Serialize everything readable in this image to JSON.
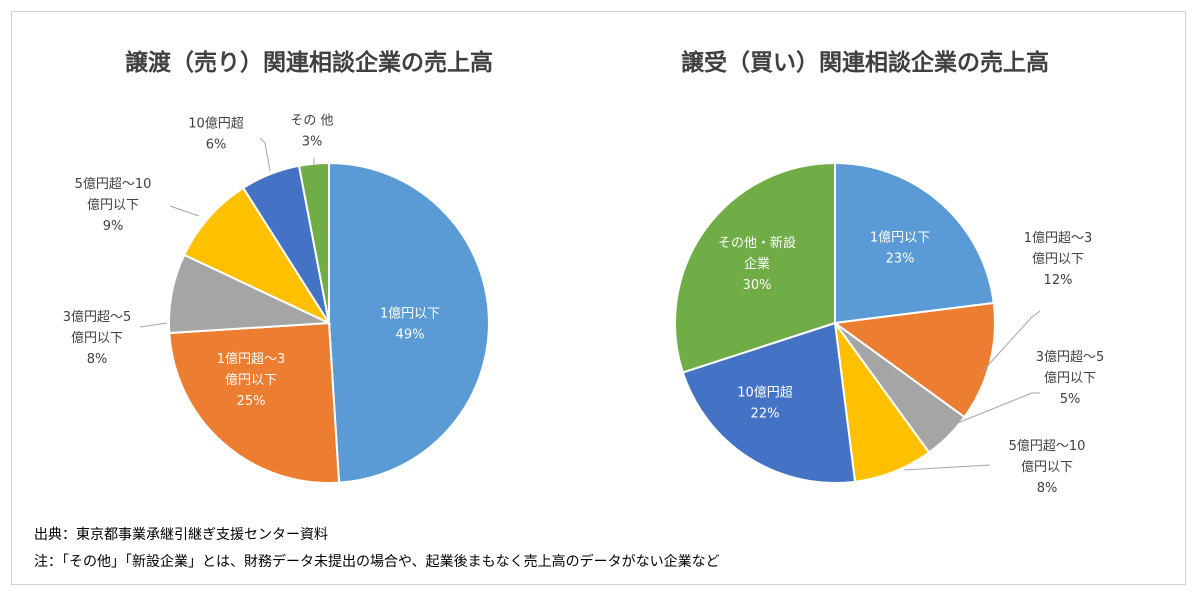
{
  "chart_data": [
    {
      "type": "pie",
      "title": "譲渡（売り）関連相談企業の売上高",
      "slices": [
        {
          "lines": [
            "1億円以下"
          ],
          "percent_label": "49%",
          "value": 49,
          "color": "#5b9bd5",
          "label_inside": true
        },
        {
          "lines": [
            "1億円超～3",
            "億円以下"
          ],
          "percent_label": "25%",
          "value": 25,
          "color": "#ed7d31",
          "label_inside": true
        },
        {
          "lines": [
            "3億円超～5",
            "億円以下"
          ],
          "percent_label": "8%",
          "value": 8,
          "color": "#a5a5a5",
          "label_inside": false
        },
        {
          "lines": [
            "5億円超～10",
            "億円以下"
          ],
          "percent_label": "9%",
          "value": 9,
          "color": "#ffc000",
          "label_inside": false
        },
        {
          "lines": [
            "10億円超"
          ],
          "percent_label": "6%",
          "value": 6,
          "color": "#4472c4",
          "label_inside": false
        },
        {
          "lines": [
            "その 他"
          ],
          "percent_label": "3%",
          "value": 3,
          "color": "#70ad47",
          "label_inside": false
        }
      ]
    },
    {
      "type": "pie",
      "title": "譲受（買い）関連相談企業の売上高",
      "slices": [
        {
          "lines": [
            "1億円以下"
          ],
          "percent_label": "23%",
          "value": 23,
          "color": "#5b9bd5",
          "label_inside": true
        },
        {
          "lines": [
            "1億円超～3",
            "億円以下"
          ],
          "percent_label": "12%",
          "value": 12,
          "color": "#ed7d31",
          "label_inside": false
        },
        {
          "lines": [
            "3億円超～5",
            "億円以下"
          ],
          "percent_label": "5%",
          "value": 5,
          "color": "#a5a5a5",
          "label_inside": false
        },
        {
          "lines": [
            "5億円超～10",
            "億円以下"
          ],
          "percent_label": "8%",
          "value": 8,
          "color": "#ffc000",
          "label_inside": false
        },
        {
          "lines": [
            "10億円超"
          ],
          "percent_label": "22%",
          "value": 22,
          "color": "#4472c4",
          "label_inside": true
        },
        {
          "lines": [
            "その他・新設",
            "企業"
          ],
          "percent_label": "30%",
          "value": 30,
          "color": "#70ad47",
          "label_inside": true
        }
      ]
    }
  ],
  "notes": {
    "source": "出典：東京都事業承継引継ぎ支援センター資料",
    "note": "注：「その他」「新設企業」とは、財務データ未提出の場合や、起業後まもなく売上高のデータがない企業など"
  }
}
